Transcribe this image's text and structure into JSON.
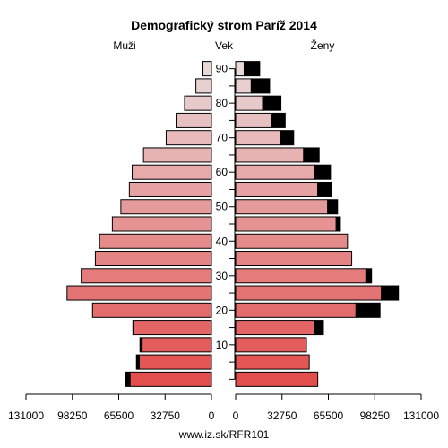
{
  "chart_data": {
    "type": "population-pyramid",
    "title": "Demografický strom Paríž 2014",
    "left_label": "Muži",
    "center_label": "Vek",
    "right_label": "Ženy",
    "footer": "www.iz.sk/RFR101",
    "x_ticks_left": [
      "131000",
      "98250",
      "65500",
      "32750",
      "0"
    ],
    "x_ticks_right": [
      "0",
      "32750",
      "65500",
      "98250",
      "131000"
    ],
    "x_tick_values": [
      131000,
      98250,
      65500,
      32750,
      0
    ],
    "y_ticks": [
      "90",
      "80",
      "70",
      "60",
      "50",
      "40",
      "30",
      "20",
      "10"
    ],
    "xlim": [
      0,
      131000
    ],
    "age_groups": [
      "0-4",
      "5-9",
      "10-14",
      "15-19",
      "20-24",
      "25-29",
      "30-34",
      "35-39",
      "40-44",
      "45-49",
      "50-54",
      "55-59",
      "60-64",
      "65-69",
      "70-74",
      "75-79",
      "80-84",
      "85-89",
      "90+"
    ],
    "males_base": [
      57500,
      51000,
      49000,
      55000,
      84000,
      102000,
      92000,
      82000,
      79000,
      70000,
      64000,
      58000,
      56000,
      48000,
      32000,
      25000,
      19000,
      11000,
      6000
    ],
    "males_extra": [
      3000,
      2000,
      1500,
      500,
      0,
      0,
      0,
      0,
      0,
      0,
      0,
      0,
      0,
      0,
      0,
      0,
      0,
      0,
      0
    ],
    "females_base": [
      58000,
      52000,
      50000,
      56000,
      85000,
      103000,
      92000,
      82000,
      79000,
      71000,
      65000,
      58000,
      56000,
      48000,
      32000,
      25000,
      19000,
      11000,
      6000
    ],
    "females_extra": [
      0,
      0,
      0,
      6000,
      17000,
      12000,
      4000,
      0,
      0,
      3000,
      7000,
      10000,
      11000,
      11000,
      9000,
      10000,
      13000,
      13000,
      11000
    ],
    "colors": {
      "bar_young": "#e24e4e",
      "bar_old": "#e8d8d8",
      "extra": "#000000",
      "axis": "#000000"
    }
  }
}
